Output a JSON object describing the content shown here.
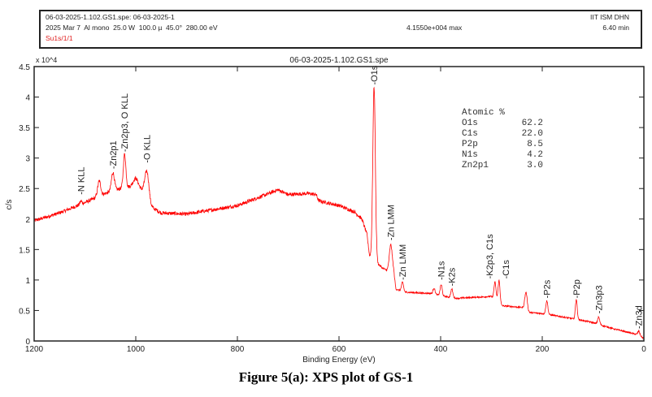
{
  "header": {
    "line1": "06-03-2025-1.102.GS1.spe: 06-03-2025-1",
    "line2": "2025 Mar 7  Al mono  25.0 W  100.0 µ  45.0°  280.00 eV",
    "line3": "Su1s/1/1",
    "max": "4.1550e+004 max",
    "institute": "IIT ISM DHN",
    "time": "6.40 min"
  },
  "caption": "Figure 5(a): XPS plot of GS-1",
  "chart_data": {
    "type": "line",
    "title": "06-03-2025-1.102.GS1.spe",
    "xlabel": "Binding Energy (eV)",
    "ylabel": "c/s",
    "y_multiplier": "x 10^4",
    "xlim": [
      1200,
      0
    ],
    "ylim": [
      0,
      4.5
    ],
    "xticks": [
      1200,
      1000,
      800,
      600,
      400,
      200,
      0
    ],
    "yticks": [
      0,
      0.5,
      1,
      1.5,
      2,
      2.5,
      3,
      3.5,
      4,
      4.5
    ],
    "ytick_labels": [
      "0",
      "0.5",
      "1",
      "1.5",
      "2",
      "2.5",
      "3",
      "3.5",
      "4",
      "4.5"
    ],
    "line_color": "#ff0000",
    "baseline": [
      [
        1200,
        1.97
      ],
      [
        1150,
        2.1
      ],
      [
        1100,
        2.27
      ],
      [
        1060,
        2.42
      ],
      [
        1030,
        2.5
      ],
      [
        1000,
        2.55
      ],
      [
        985,
        2.45
      ],
      [
        970,
        2.2
      ],
      [
        950,
        2.1
      ],
      [
        900,
        2.08
      ],
      [
        850,
        2.15
      ],
      [
        800,
        2.22
      ],
      [
        750,
        2.38
      ],
      [
        720,
        2.48
      ],
      [
        700,
        2.4
      ],
      [
        660,
        2.42
      ],
      [
        645,
        2.4
      ],
      [
        640,
        2.3
      ],
      [
        600,
        2.22
      ],
      [
        570,
        2.12
      ],
      [
        555,
        2.0
      ],
      [
        545,
        1.75
      ],
      [
        540,
        1.4
      ],
      [
        535,
        1.35
      ],
      [
        528,
        1.3
      ],
      [
        515,
        1.2
      ],
      [
        505,
        1.15
      ],
      [
        492,
        1.1
      ],
      [
        488,
        0.85
      ],
      [
        470,
        0.8
      ],
      [
        420,
        0.78
      ],
      [
        385,
        0.72
      ],
      [
        370,
        0.7
      ],
      [
        300,
        0.73
      ],
      [
        290,
        0.66
      ],
      [
        282,
        0.58
      ],
      [
        240,
        0.55
      ],
      [
        228,
        0.47
      ],
      [
        200,
        0.45
      ],
      [
        150,
        0.38
      ],
      [
        110,
        0.32
      ],
      [
        100,
        0.3
      ],
      [
        60,
        0.2
      ],
      [
        30,
        0.14
      ],
      [
        10,
        0.1
      ],
      [
        0,
        0.04
      ]
    ],
    "peaks": [
      {
        "e": 1108,
        "h": 0.05,
        "w": 2
      },
      {
        "e": 1072,
        "h": 0.25,
        "w": 3
      },
      {
        "e": 1045,
        "h": 0.3,
        "w": 3
      },
      {
        "e": 1022,
        "h": 0.55,
        "w": 2.5
      },
      {
        "e": 1000,
        "h": 0.12,
        "w": 5
      },
      {
        "e": 978,
        "h": 0.45,
        "w": 4
      },
      {
        "e": 531,
        "h": 2.85,
        "w": 2.5
      },
      {
        "e": 498,
        "h": 0.45,
        "w": 3
      },
      {
        "e": 475,
        "h": 0.15,
        "w": 2
      },
      {
        "e": 413,
        "h": 0.1,
        "w": 2
      },
      {
        "e": 399,
        "h": 0.18,
        "w": 2
      },
      {
        "e": 378,
        "h": 0.14,
        "w": 2
      },
      {
        "e": 293,
        "h": 0.28,
        "w": 2
      },
      {
        "e": 285,
        "h": 0.38,
        "w": 2
      },
      {
        "e": 232,
        "h": 0.3,
        "w": 2.5
      },
      {
        "e": 191,
        "h": 0.22,
        "w": 2
      },
      {
        "e": 133,
        "h": 0.33,
        "w": 1.8
      },
      {
        "e": 89,
        "h": 0.12,
        "w": 2
      },
      {
        "e": 10,
        "h": 0.06,
        "w": 2
      }
    ],
    "peak_labels": [
      {
        "text": "-N KLL",
        "e": 1108,
        "y": 2.4
      },
      {
        "text": "-Zn2p1",
        "e": 1045,
        "y": 2.82
      },
      {
        "text": "-Zn2p3, O KLL",
        "e": 1022,
        "y": 3.1
      },
      {
        "text": "-O KLL",
        "e": 978,
        "y": 2.92
      },
      {
        "text": "-O1s",
        "e": 531,
        "y": 4.2
      },
      {
        "text": "-Zn LMM",
        "e": 498,
        "y": 1.65
      },
      {
        "text": "-Zn LMM",
        "e": 475,
        "y": 1.0
      },
      {
        "text": "-N1s",
        "e": 399,
        "y": 1.0
      },
      {
        "text": "-K2s",
        "e": 378,
        "y": 0.9
      },
      {
        "text": "-K2p3, C1s",
        "e": 293,
        "y": 1.02
      },
      {
        "text": "-C1s",
        "e": 285,
        "y": 1.02
      },
      {
        "text": "-P2s",
        "e": 191,
        "y": 0.7
      },
      {
        "text": "-P2p",
        "e": 133,
        "y": 0.7
      },
      {
        "text": "-Zn3p3",
        "e": 89,
        "y": 0.45
      },
      {
        "text": "-Zn3d",
        "e": 10,
        "y": 0.2
      }
    ],
    "atomic_table": {
      "heading": "Atomic %",
      "rows": [
        [
          "O1s",
          "62.2"
        ],
        [
          "C1s",
          "22.0"
        ],
        [
          "P2p",
          "8.5"
        ],
        [
          "N1s",
          "4.2"
        ],
        [
          "Zn2p1",
          "3.0"
        ]
      ]
    }
  }
}
